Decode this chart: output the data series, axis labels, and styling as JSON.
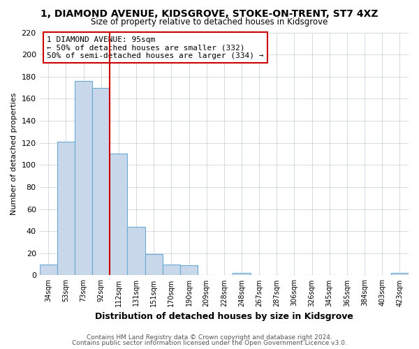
{
  "title": "1, DIAMOND AVENUE, KIDSGROVE, STOKE-ON-TRENT, ST7 4XZ",
  "subtitle": "Size of property relative to detached houses in Kidsgrove",
  "xlabel": "Distribution of detached houses by size in Kidsgrove",
  "ylabel": "Number of detached properties",
  "bin_labels": [
    "34sqm",
    "53sqm",
    "73sqm",
    "92sqm",
    "112sqm",
    "131sqm",
    "151sqm",
    "170sqm",
    "190sqm",
    "209sqm",
    "228sqm",
    "248sqm",
    "267sqm",
    "287sqm",
    "306sqm",
    "326sqm",
    "345sqm",
    "365sqm",
    "384sqm",
    "403sqm",
    "423sqm"
  ],
  "bar_heights": [
    10,
    121,
    176,
    170,
    110,
    44,
    19,
    10,
    9,
    0,
    0,
    2,
    0,
    0,
    0,
    0,
    0,
    0,
    0,
    0,
    2
  ],
  "bar_color": "#c8d8ea",
  "bar_edge_color": "#6aaad4",
  "vline_color": "#cc0000",
  "annotation_title": "1 DIAMOND AVENUE: 95sqm",
  "annotation_line1": "← 50% of detached houses are smaller (332)",
  "annotation_line2": "50% of semi-detached houses are larger (334) →",
  "annotation_box_edge_color": "#cc0000",
  "ylim": [
    0,
    220
  ],
  "yticks": [
    0,
    20,
    40,
    60,
    80,
    100,
    120,
    140,
    160,
    180,
    200,
    220
  ],
  "footer1": "Contains HM Land Registry data © Crown copyright and database right 2024.",
  "footer2": "Contains public sector information licensed under the Open Government Licence v3.0.",
  "bg_color": "#ffffff",
  "grid_color": "#c0ccd8"
}
